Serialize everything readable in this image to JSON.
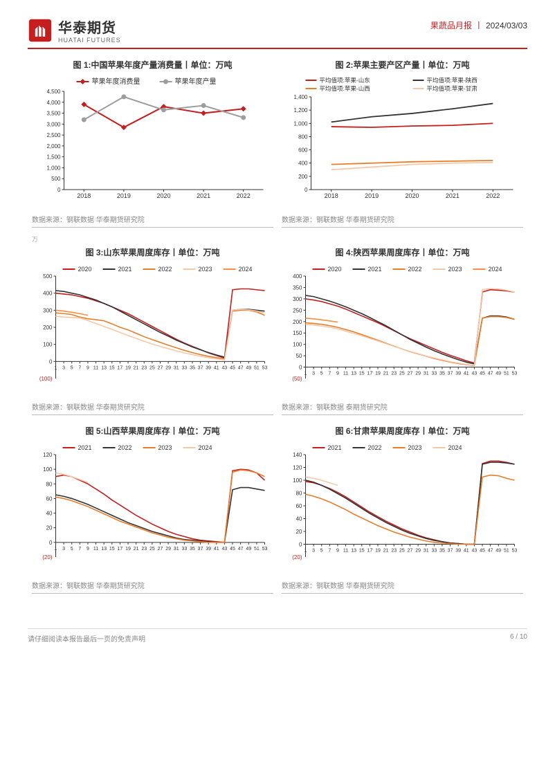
{
  "header": {
    "brand_cn": "华泰期货",
    "brand_en": "HUATAI FUTURES",
    "report_type": "果蔬品月报",
    "date": "2024/03/03"
  },
  "footer": {
    "disclaimer": "请仔细阅读本报告最后一页的免责声明",
    "page": "6 / 10"
  },
  "charts": {
    "c1": {
      "title": "图 1:中国苹果年度产量消费量丨单位：万吨",
      "legend": [
        "苹果年度消费量",
        "苹果年度产量"
      ],
      "legend_colors": [
        "#c41e1e",
        "#9e9e9e"
      ],
      "categories": [
        "2018",
        "2019",
        "2020",
        "2021",
        "2022"
      ],
      "series": [
        {
          "name": "苹果年度消费量",
          "color": "#c41e1e",
          "marker": "diamond",
          "values": [
            3900,
            2850,
            3800,
            3500,
            3700
          ]
        },
        {
          "name": "苹果年度产量",
          "color": "#9e9e9e",
          "marker": "circle",
          "values": [
            3200,
            4250,
            3650,
            3850,
            3300
          ]
        }
      ],
      "ylim": [
        0,
        4500
      ],
      "ystep": 500,
      "source": "数据来源：钢联数据  华泰期货研究院"
    },
    "c2": {
      "title": "图 2:苹果主要产区产量丨单位：万吨",
      "legend": [
        "平均值项:苹果-山东",
        "平均值项:苹果-陕西",
        "平均值项:苹果-山西",
        "平均值项:苹果-甘肃"
      ],
      "legend_colors": [
        "#c41e1e",
        "#333333",
        "#e87d2b",
        "#f5c9a8"
      ],
      "categories": [
        "2018",
        "2019",
        "2020",
        "2021",
        "2022"
      ],
      "series": [
        {
          "name": "山东",
          "color": "#c41e1e",
          "values": [
            950,
            940,
            960,
            970,
            1000
          ]
        },
        {
          "name": "陕西",
          "color": "#333333",
          "values": [
            1020,
            1100,
            1150,
            1220,
            1300
          ]
        },
        {
          "name": "山西",
          "color": "#e87d2b",
          "values": [
            380,
            400,
            420,
            430,
            440
          ]
        },
        {
          "name": "甘肃",
          "color": "#f5c9a8",
          "values": [
            300,
            340,
            380,
            400,
            410
          ]
        }
      ],
      "ylim": [
        0,
        1400
      ],
      "ystep": 200,
      "source": "数据来源：钢联数据  华泰期货研究院"
    },
    "c3": {
      "title": "图 3:山东苹果周度库存丨单位：万吨",
      "legend": [
        "2020",
        "2021",
        "2022",
        "2023",
        "2024"
      ],
      "legend_colors": [
        "#c41e1e",
        "#333333",
        "#e87d2b",
        "#f5c9a8",
        "#ff8c42"
      ],
      "ylim": [
        -100,
        500
      ],
      "ystep": 100,
      "neg_label": "(100)",
      "source": "数据来源：钢联数据  华泰期货研究院"
    },
    "c4": {
      "title": "图 4:陕西苹果周度库存丨单位：万吨",
      "legend": [
        "2020",
        "2021",
        "2022",
        "2023",
        "2024"
      ],
      "legend_colors": [
        "#c41e1e",
        "#333333",
        "#e87d2b",
        "#f5c9a8",
        "#ff8c42"
      ],
      "ylim": [
        -50,
        400
      ],
      "ystep": 50,
      "neg_label": "(50)",
      "source": "数据来源：钢联数据  泰期货研究院"
    },
    "c5": {
      "title": "图 5:山西苹果周度库存丨单位：万吨",
      "legend": [
        "2021",
        "2022",
        "2023",
        "2024"
      ],
      "legend_colors": [
        "#c41e1e",
        "#333333",
        "#e87d2b",
        "#f5c9a8"
      ],
      "ylim": [
        -20,
        120
      ],
      "ystep": 20,
      "neg_label": "(20)",
      "source": "数据来源：钢联数据  华泰期货研究院"
    },
    "c6": {
      "title": "图 6:甘肃苹果周度库存丨单位：万吨",
      "legend": [
        "2021",
        "2022",
        "2023",
        "2024"
      ],
      "legend_colors": [
        "#c41e1e",
        "#333333",
        "#e87d2b",
        "#f5c9a8"
      ],
      "ylim": [
        -20,
        140
      ],
      "ystep": 20,
      "neg_label": "(20)",
      "source": "数据来源：钢联数据  华泰期货研究院"
    }
  },
  "weekly": {
    "weeks": [
      1,
      3,
      5,
      7,
      9,
      11,
      13,
      15,
      17,
      19,
      21,
      23,
      25,
      27,
      29,
      31,
      33,
      35,
      37,
      39,
      41,
      43,
      45,
      47,
      49,
      51,
      53
    ],
    "c3": {
      "2020": [
        400,
        395,
        390,
        380,
        370,
        355,
        340,
        320,
        300,
        280,
        255,
        230,
        205,
        180,
        155,
        130,
        108,
        88,
        70,
        50,
        35,
        20,
        420,
        425,
        425,
        420,
        415
      ],
      "2021": [
        415,
        410,
        400,
        390,
        375,
        360,
        340,
        320,
        295,
        270,
        245,
        220,
        195,
        170,
        148,
        125,
        105,
        85,
        68,
        52,
        38,
        25,
        300,
        305,
        305,
        300,
        295
      ],
      "2022": [
        285,
        280,
        275,
        260,
        250,
        245,
        238,
        220,
        200,
        185,
        165,
        145,
        128,
        112,
        95,
        80,
        65,
        52,
        40,
        30,
        22,
        15,
        295,
        300,
        300,
        290,
        270
      ],
      "2023": [
        265,
        260,
        258,
        255,
        240,
        222,
        205,
        188,
        170,
        152,
        135,
        118,
        102,
        88,
        75,
        62,
        50,
        40,
        30,
        22,
        15,
        10,
        300,
        305,
        302,
        295,
        285
      ],
      "2024": [
        300,
        295,
        288,
        280,
        270,
        null,
        null,
        null,
        null,
        null,
        null,
        null,
        null,
        null,
        null,
        null,
        null,
        null,
        null,
        null,
        null,
        null,
        null,
        null,
        null,
        null,
        null
      ]
    },
    "c4": {
      "2020": [
        300,
        295,
        288,
        278,
        268,
        255,
        240,
        225,
        210,
        195,
        178,
        160,
        142,
        125,
        110,
        95,
        80,
        65,
        52,
        40,
        28,
        18,
        330,
        340,
        338,
        335,
        330
      ],
      "2021": [
        315,
        310,
        300,
        290,
        278,
        265,
        250,
        235,
        218,
        200,
        182,
        162,
        142,
        122,
        105,
        88,
        72,
        58,
        45,
        33,
        22,
        14,
        215,
        225,
        225,
        220,
        210
      ],
      "2022": [
        195,
        192,
        188,
        182,
        175,
        165,
        155,
        143,
        130,
        118,
        105,
        92,
        80,
        68,
        58,
        48,
        38,
        30,
        22,
        16,
        11,
        7,
        215,
        222,
        222,
        218,
        210
      ],
      "2023": [
        188,
        185,
        180,
        175,
        168,
        158,
        148,
        138,
        126,
        115,
        103,
        91,
        80,
        69,
        59,
        49,
        40,
        32,
        24,
        18,
        12,
        8,
        340,
        345,
        343,
        338,
        330
      ],
      "2024": [
        215,
        212,
        208,
        203,
        198,
        null,
        null,
        null,
        null,
        null,
        null,
        null,
        null,
        null,
        null,
        null,
        null,
        null,
        null,
        null,
        null,
        null,
        null,
        null,
        null,
        null,
        null
      ]
    },
    "c5": {
      "2021": [
        90,
        92,
        90,
        85,
        80,
        73,
        66,
        58,
        51,
        44,
        37,
        31,
        25,
        20,
        15,
        11,
        8,
        5,
        3,
        2,
        1,
        0,
        98,
        100,
        99,
        95,
        85
      ],
      "2022": [
        65,
        63,
        60,
        56,
        52,
        47,
        42,
        37,
        32,
        27,
        23,
        19,
        15,
        12,
        9,
        6,
        4,
        3,
        2,
        1,
        0,
        0,
        72,
        75,
        75,
        73,
        71
      ],
      "2023": [
        62,
        60,
        57,
        53,
        49,
        44,
        39,
        34,
        29,
        25,
        21,
        17,
        13,
        10,
        7,
        5,
        3,
        2,
        1,
        0,
        0,
        0,
        96,
        99,
        98,
        95,
        90
      ],
      "2024": [
        95,
        93,
        90,
        86,
        82,
        null,
        null,
        null,
        null,
        null,
        null,
        null,
        null,
        null,
        null,
        null,
        null,
        null,
        null,
        null,
        null,
        null,
        null,
        null,
        null,
        null,
        null
      ]
    },
    "c6": {
      "2021": [
        98,
        96,
        92,
        87,
        81,
        74,
        66,
        58,
        50,
        43,
        36,
        30,
        24,
        19,
        14,
        10,
        7,
        4,
        2,
        1,
        0,
        0,
        126,
        130,
        130,
        128,
        125
      ],
      "2022": [
        100,
        97,
        92,
        86,
        79,
        72,
        64,
        56,
        48,
        41,
        34,
        28,
        22,
        17,
        13,
        9,
        6,
        4,
        2,
        1,
        0,
        0,
        125,
        128,
        128,
        127,
        125
      ],
      "2023": [
        78,
        75,
        71,
        66,
        60,
        54,
        47,
        41,
        35,
        29,
        24,
        19,
        15,
        11,
        8,
        5,
        3,
        2,
        1,
        0,
        0,
        0,
        105,
        108,
        107,
        103,
        100
      ],
      "2024": [
        105,
        103,
        100,
        96,
        92,
        null,
        null,
        null,
        null,
        null,
        null,
        null,
        null,
        null,
        null,
        null,
        null,
        null,
        null,
        null,
        null,
        null,
        null,
        null,
        null,
        null,
        null
      ]
    }
  },
  "style": {
    "axis_color": "#333",
    "tick_font": 9,
    "legend_font": 10
  }
}
